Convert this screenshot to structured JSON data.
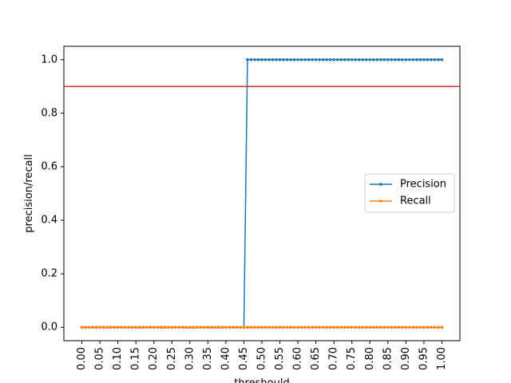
{
  "chart_data": {
    "type": "line",
    "title": "",
    "xlabel": "threshould",
    "ylabel": "precision/recall",
    "xlim": [
      -0.05,
      1.05
    ],
    "ylim": [
      -0.05,
      1.05
    ],
    "x_ticks": [
      0.0,
      0.05,
      0.1,
      0.15,
      0.2,
      0.25,
      0.3,
      0.35,
      0.4,
      0.45,
      0.5,
      0.55,
      0.6,
      0.65,
      0.7,
      0.75,
      0.8,
      0.85,
      0.9,
      0.95,
      1.0
    ],
    "x_tick_labels": [
      "0.00",
      "0.05",
      "0.10",
      "0.15",
      "0.20",
      "0.25",
      "0.30",
      "0.35",
      "0.40",
      "0.45",
      "0.50",
      "0.55",
      "0.60",
      "0.65",
      "0.70",
      "0.75",
      "0.80",
      "0.85",
      "0.90",
      "0.95",
      "1.00"
    ],
    "y_ticks": [
      0.0,
      0.2,
      0.4,
      0.6,
      0.8,
      1.0
    ],
    "y_tick_labels": [
      "0.0",
      "0.2",
      "0.4",
      "0.6",
      "0.8",
      "1.0"
    ],
    "x": [
      0.0,
      0.01,
      0.02,
      0.03,
      0.04,
      0.05,
      0.06,
      0.07,
      0.08,
      0.09,
      0.1,
      0.11,
      0.12,
      0.13,
      0.14,
      0.15,
      0.16,
      0.17,
      0.18,
      0.19,
      0.2,
      0.21,
      0.22,
      0.23,
      0.24,
      0.25,
      0.26,
      0.27,
      0.28,
      0.29,
      0.3,
      0.31,
      0.32,
      0.33,
      0.34,
      0.35,
      0.36,
      0.37,
      0.38,
      0.39,
      0.4,
      0.41,
      0.42,
      0.43,
      0.44,
      0.45,
      0.46,
      0.47,
      0.48,
      0.49,
      0.5,
      0.51,
      0.52,
      0.53,
      0.54,
      0.55,
      0.56,
      0.57,
      0.58,
      0.59,
      0.6,
      0.61,
      0.62,
      0.63,
      0.64,
      0.65,
      0.66,
      0.67,
      0.68,
      0.69,
      0.7,
      0.71,
      0.72,
      0.73,
      0.74,
      0.75,
      0.76,
      0.77,
      0.78,
      0.79,
      0.8,
      0.81,
      0.82,
      0.83,
      0.84,
      0.85,
      0.86,
      0.87,
      0.88,
      0.89,
      0.9,
      0.91,
      0.92,
      0.93,
      0.94,
      0.95,
      0.96,
      0.97,
      0.98,
      0.99,
      1.0
    ],
    "series": [
      {
        "name": "Precision",
        "color": "#1f77b4",
        "values": [
          0,
          0,
          0,
          0,
          0,
          0,
          0,
          0,
          0,
          0,
          0,
          0,
          0,
          0,
          0,
          0,
          0,
          0,
          0,
          0,
          0,
          0,
          0,
          0,
          0,
          0,
          0,
          0,
          0,
          0,
          0,
          0,
          0,
          0,
          0,
          0,
          0,
          0,
          0,
          0,
          0,
          0,
          0,
          0,
          0,
          0,
          1,
          1,
          1,
          1,
          1,
          1,
          1,
          1,
          1,
          1,
          1,
          1,
          1,
          1,
          1,
          1,
          1,
          1,
          1,
          1,
          1,
          1,
          1,
          1,
          1,
          1,
          1,
          1,
          1,
          1,
          1,
          1,
          1,
          1,
          1,
          1,
          1,
          1,
          1,
          1,
          1,
          1,
          1,
          1,
          1,
          1,
          1,
          1,
          1,
          1,
          1,
          1,
          1,
          1,
          1
        ]
      },
      {
        "name": "Recall",
        "color": "#ff7f0e",
        "values": [
          0,
          0,
          0,
          0,
          0,
          0,
          0,
          0,
          0,
          0,
          0,
          0,
          0,
          0,
          0,
          0,
          0,
          0,
          0,
          0,
          0,
          0,
          0,
          0,
          0,
          0,
          0,
          0,
          0,
          0,
          0,
          0,
          0,
          0,
          0,
          0,
          0,
          0,
          0,
          0,
          0,
          0,
          0,
          0,
          0,
          0,
          0,
          0,
          0,
          0,
          0,
          0,
          0,
          0,
          0,
          0,
          0,
          0,
          0,
          0,
          0,
          0,
          0,
          0,
          0,
          0,
          0,
          0,
          0,
          0,
          0,
          0,
          0,
          0,
          0,
          0,
          0,
          0,
          0,
          0,
          0,
          0,
          0,
          0,
          0,
          0,
          0,
          0,
          0,
          0,
          0,
          0,
          0,
          0,
          0,
          0,
          0,
          0,
          0,
          0,
          0
        ]
      }
    ],
    "hlines": [
      {
        "y": 0.9,
        "color": "#d62728"
      }
    ],
    "legend": {
      "placement": "center-right",
      "entries": [
        "Precision",
        "Recall"
      ]
    },
    "grid": false
  }
}
